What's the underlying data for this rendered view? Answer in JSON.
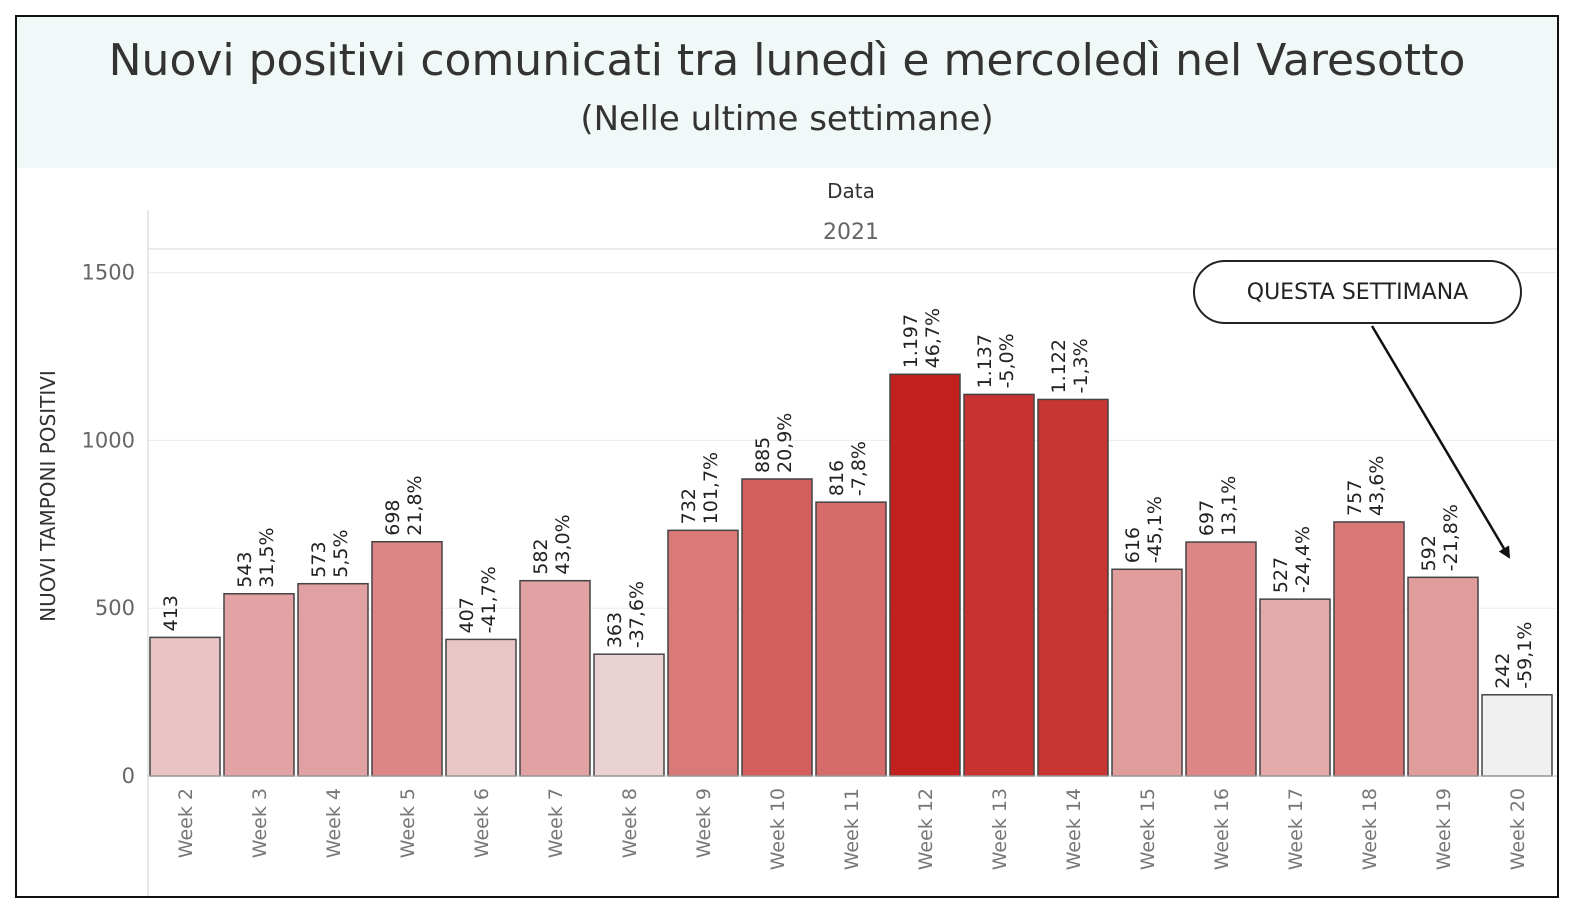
{
  "header": {
    "title": "Nuovi positivi comunicati tra lunedì e mercoledì nel Varesotto",
    "subtitle": "(Nelle ultime settimane)"
  },
  "callout": {
    "text": "QUESTA SETTIMANA"
  },
  "chart_data": {
    "type": "bar",
    "title": "Nuovi positivi comunicati tra lunedì e mercoledì nel Varesotto",
    "subtitle": "(Nelle ultime settimane)",
    "column_header": "Data",
    "year": "2021",
    "ylabel": "NUOVI TAMPONI POSITIVI",
    "ylim": [
      0,
      1600
    ],
    "yticks": [
      0,
      500,
      1000,
      1500
    ],
    "grid": true,
    "categories": [
      "Week 2",
      "Week 3",
      "Week 4",
      "Week 5",
      "Week 6",
      "Week 7",
      "Week 8",
      "Week 9",
      "Week 10",
      "Week 11",
      "Week 12",
      "Week 13",
      "Week 14",
      "Week 15",
      "Week 16",
      "Week 17",
      "Week 18",
      "Week 19",
      "Week 20"
    ],
    "values": [
      413,
      543,
      573,
      698,
      407,
      582,
      363,
      732,
      885,
      816,
      1197,
      1137,
      1122,
      616,
      697,
      527,
      757,
      592,
      242
    ],
    "value_labels": [
      "413",
      "543",
      "573",
      "698",
      "407",
      "582",
      "363",
      "732",
      "885",
      "816",
      "1.197",
      "1.137",
      "1.122",
      "616",
      "697",
      "527",
      "757",
      "592",
      "242"
    ],
    "pct_labels": [
      "",
      "31,5%",
      "5,5%",
      "21,8%",
      "-41,7%",
      "43,0%",
      "-37,6%",
      "101,7%",
      "20,9%",
      "-7,8%",
      "46,7%",
      "-5,0%",
      "-1,3%",
      "-45,1%",
      "13,1%",
      "-24,4%",
      "43,6%",
      "-21,8%",
      "-59,1%"
    ],
    "colors": [
      "#e9c4c5",
      "#e3a3a4",
      "#e1a1a2",
      "#dd8685",
      "#e9c6c6",
      "#e2a2a3",
      "#ead1d2",
      "#d97978",
      "#d45e5d",
      "#d56b6a",
      "#c1201f",
      "#c83230",
      "#c93532",
      "#e19c9c",
      "#dc8685",
      "#e3aaaa",
      "#d97877",
      "#e19c9c",
      "#f0f0f0"
    ],
    "annotation": "QUESTA SETTIMANA"
  }
}
